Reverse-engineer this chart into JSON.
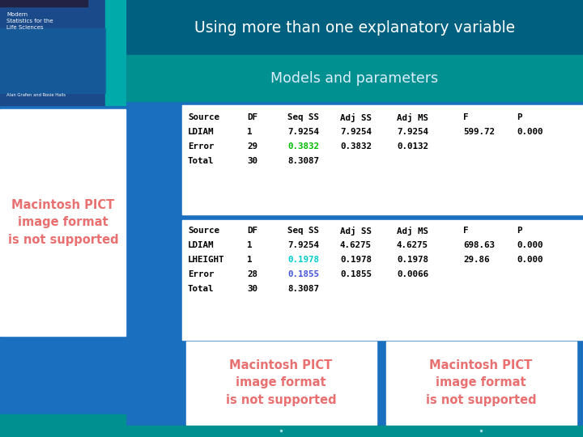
{
  "title": "Using more than one explanatory variable",
  "subtitle": "Models and parameters",
  "bg_color": "#1A6FBF",
  "header_bg": "#006080",
  "teal_band": "#009090",
  "title_color": "#FFFFFF",
  "subtitle_color": "#DDEEFF",
  "table1": {
    "headers": [
      "Source",
      "DF",
      "Seq SS",
      "Adj SS",
      "Adj MS",
      "F",
      "P"
    ],
    "rows": [
      [
        "LDIAM",
        "1",
        "7.9254",
        "7.9254",
        "7.9254",
        "599.72",
        "0.000"
      ],
      [
        "Error",
        "29",
        "0.3832",
        "0.3832",
        "0.0132",
        "",
        ""
      ],
      [
        "Total",
        "30",
        "8.3087",
        "",
        "",
        "",
        ""
      ]
    ],
    "highlight_row": 1,
    "highlight_col": 2,
    "highlight_color": "#00BB00"
  },
  "table2": {
    "headers": [
      "Source",
      "DF",
      "Seq SS",
      "Adj SS",
      "Adj MS",
      "F",
      "P"
    ],
    "rows": [
      [
        "LDIAM",
        "1",
        "7.9254",
        "4.6275",
        "4.6275",
        "698.63",
        "0.000"
      ],
      [
        "LHEIGHT",
        "1",
        "0.1978",
        "0.1978",
        "0.1978",
        "29.86",
        "0.000"
      ],
      [
        "Error",
        "28",
        "0.1855",
        "0.1855",
        "0.0066",
        "",
        ""
      ],
      [
        "Total",
        "30",
        "8.3087",
        "",
        "",
        "",
        ""
      ]
    ],
    "highlight": [
      {
        "row": 1,
        "col": 2,
        "color": "#00CCCC"
      },
      {
        "row": 2,
        "col": 2,
        "color": "#4455DD"
      }
    ]
  },
  "pict_text_color": "#E87070",
  "pict_text": "Macintosh PICT\nimage format\nis not supported"
}
